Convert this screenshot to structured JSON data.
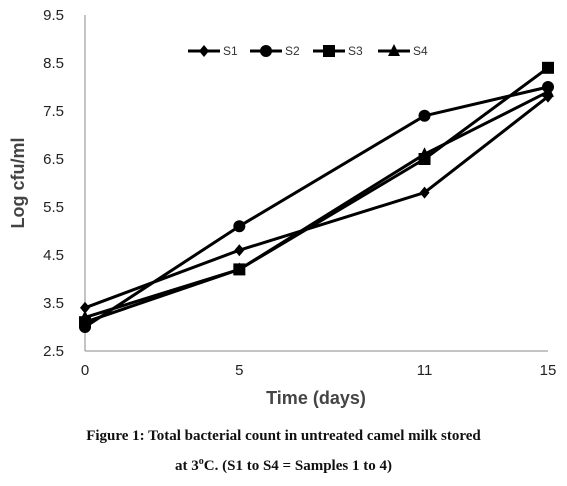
{
  "chart_data": {
    "type": "line",
    "x": [
      0,
      5,
      11,
      15
    ],
    "series": [
      {
        "name": "S1",
        "marker": "diamond",
        "values": [
          3.4,
          4.6,
          5.8,
          7.8
        ]
      },
      {
        "name": "S2",
        "marker": "circle",
        "values": [
          3.0,
          5.1,
          7.4,
          8.0
        ]
      },
      {
        "name": "S3",
        "marker": "square",
        "values": [
          3.1,
          4.2,
          6.5,
          8.4
        ]
      },
      {
        "name": "S4",
        "marker": "triangle",
        "values": [
          3.2,
          4.2,
          6.6,
          7.9
        ]
      }
    ],
    "xlabel": "Time (days)",
    "ylabel": "Log cfu/ml",
    "x_ticks": [
      "0",
      "5",
      "11",
      "15"
    ],
    "y_ticks": [
      "2.5",
      "3.5",
      "4.5",
      "5.5",
      "6.5",
      "7.5",
      "8.5",
      "9.5"
    ],
    "ylim": [
      2.5,
      9.5
    ],
    "grid": false,
    "legend_position": "top",
    "line_color": "#000000"
  },
  "caption": {
    "line1": "Figure 1: Total bacterial count in untreated camel milk stored",
    "line2_pre": "at 3",
    "line2_sup": "o",
    "line2_post": "C. (S1 to S4 = Samples 1 to 4)"
  }
}
